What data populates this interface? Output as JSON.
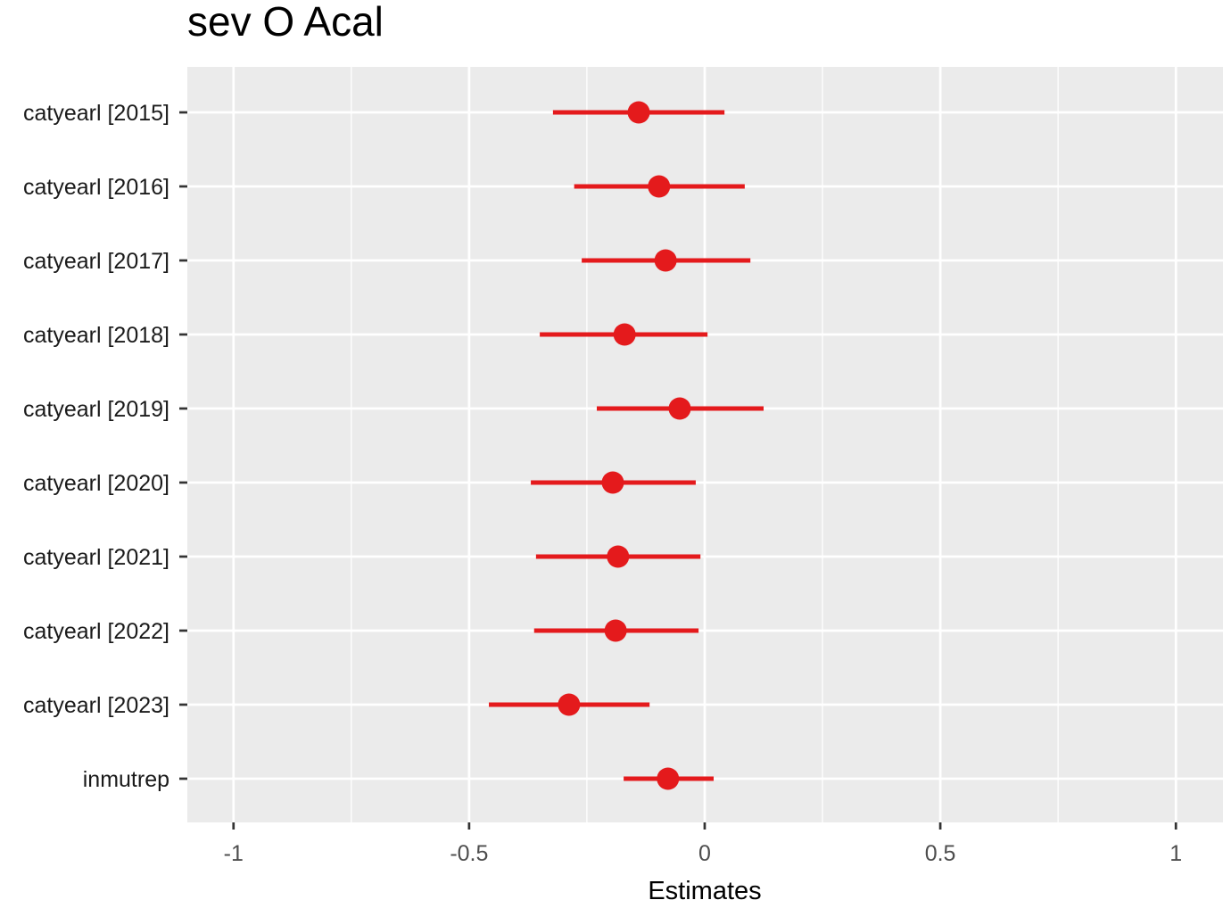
{
  "chart_data": {
    "type": "scatter",
    "subtype": "forest-plot",
    "title": "sev O Acal",
    "xlabel": "Estimates",
    "ylabel": "",
    "xlim": [
      -1.098,
      1.1
    ],
    "x_ticks": [
      -1,
      -0.5,
      0,
      0.5,
      1
    ],
    "x_tick_labels": [
      "-1",
      "-0.5",
      "0",
      "0.5",
      "1"
    ],
    "grid": true,
    "color": "#e41a1c",
    "categories": [
      "catyearl [2015]",
      "catyearl [2016]",
      "catyearl [2017]",
      "catyearl [2018]",
      "catyearl [2019]",
      "catyearl [2020]",
      "catyearl [2021]",
      "catyearl [2022]",
      "catyearl [2023]",
      "inmutrep"
    ],
    "estimates": [
      -0.14,
      -0.097,
      -0.083,
      -0.17,
      -0.053,
      -0.195,
      -0.184,
      -0.189,
      -0.288,
      -0.078
    ],
    "ci_low": [
      -0.322,
      -0.277,
      -0.261,
      -0.35,
      -0.229,
      -0.369,
      -0.358,
      -0.362,
      -0.458,
      -0.172
    ],
    "ci_high": [
      0.042,
      0.085,
      0.097,
      0.006,
      0.125,
      -0.019,
      -0.009,
      -0.013,
      -0.117,
      0.019
    ]
  }
}
